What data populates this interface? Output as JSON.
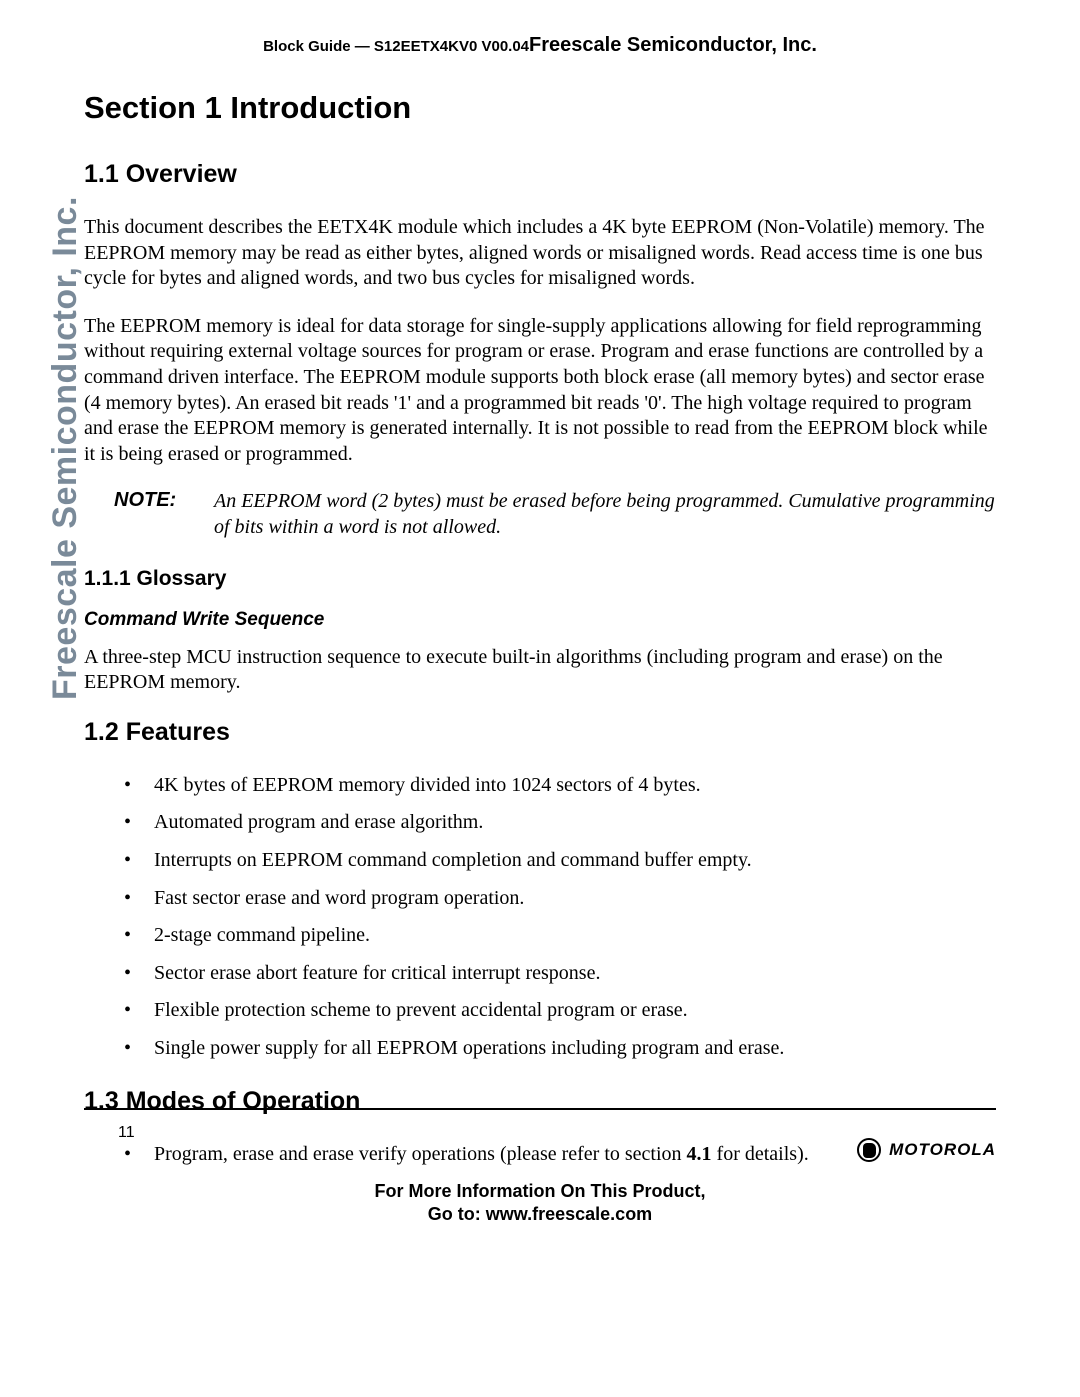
{
  "side_watermark": "Freescale Semiconductor, Inc.",
  "header": {
    "guide_prefix": "Block Guide — S12EETX4KV0 V00.04",
    "company": "Freescale Semiconductor, Inc."
  },
  "section": {
    "title": "Section 1  Introduction",
    "overview": {
      "heading": "1.1  Overview",
      "p1": "This document describes the EETX4K module which includes a 4K byte EEPROM (Non-Volatile) memory. The EEPROM memory may be read as either bytes, aligned words or misaligned words. Read access time is one bus cycle for bytes and aligned words, and two bus cycles for misaligned words.",
      "p2": "The EEPROM memory is ideal for data storage for single-supply applications allowing for field reprogramming without requiring external voltage sources for program or erase. Program and erase functions are controlled by a command driven interface. The EEPROM module supports both block erase (all memory bytes) and sector erase (4 memory bytes). An erased bit reads '1' and a programmed bit reads '0'. The high voltage required to program and erase the EEPROM memory is generated internally. It is not possible to read from the EEPROM block while it is being erased or programmed.",
      "note_label": "NOTE:",
      "note_body": "An EEPROM word (2 bytes) must be erased before being programmed. Cumulative programming of bits within a word is not allowed.",
      "glossary": {
        "heading": "1.1.1  Glossary",
        "cws_title": "Command Write Sequence",
        "cws_body": "A three-step MCU instruction sequence to execute built-in algorithms (including program and erase) on the EEPROM memory."
      }
    },
    "features": {
      "heading": "1.2  Features",
      "items": [
        "4K bytes of EEPROM memory divided into 1024 sectors of 4 bytes.",
        "Automated program and erase algorithm.",
        "Interrupts on EEPROM command completion and command buffer empty.",
        "Fast sector erase and word program operation.",
        "2-stage command pipeline.",
        "Sector erase abort feature for critical interrupt response.",
        "Flexible protection scheme to prevent accidental program or erase.",
        "Single power supply for all EEPROM operations including program and erase."
      ]
    },
    "modes": {
      "heading": "1.3  Modes of Operation",
      "item_prefix": "Program, erase and erase verify operations (please refer to section ",
      "item_ref": "4.1",
      "item_suffix": " for details)."
    }
  },
  "footer": {
    "page_number": "11",
    "brand": "MOTOROLA",
    "line1": "For More Information On This Product,",
    "line2": "Go to: www.freescale.com"
  }
}
